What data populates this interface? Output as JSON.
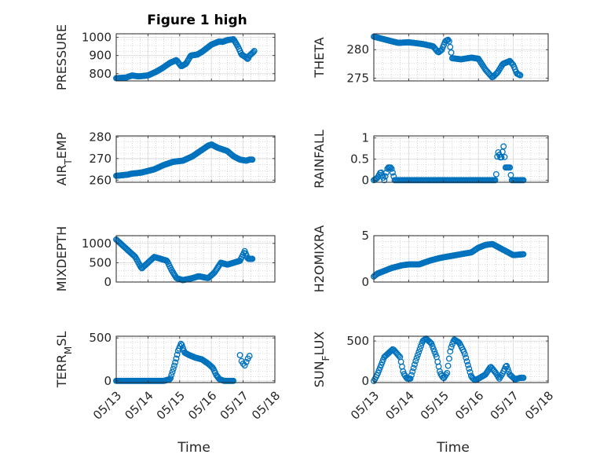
{
  "figure": {
    "title": "Figure 1 high",
    "marker_color": "#0072bd",
    "axis_color": "#262626",
    "grid_color": "#b8b8b8",
    "xtick_labels": [
      "05/13",
      "05/14",
      "05/15",
      "05/16",
      "05/17",
      "05/18"
    ],
    "xlabel": "Time"
  },
  "chart_data": [
    {
      "type": "scatter",
      "title": "Figure 1 high",
      "ylabel": "PRESSURE",
      "xlim": [
        0,
        5
      ],
      "ylim": [
        760,
        1020
      ],
      "yticks": [
        800,
        900,
        1000
      ],
      "ytick_labels": [
        "800",
        "900",
        "1000"
      ],
      "xlabel": "",
      "xtick_labels": [],
      "grid": true,
      "keypoints": [
        [
          0.0,
          775
        ],
        [
          0.3,
          778
        ],
        [
          0.5,
          790
        ],
        [
          0.7,
          785
        ],
        [
          1.0,
          790
        ],
        [
          1.25,
          810
        ],
        [
          1.45,
          830
        ],
        [
          1.7,
          860
        ],
        [
          1.9,
          875
        ],
        [
          2.05,
          840
        ],
        [
          2.2,
          855
        ],
        [
          2.35,
          900
        ],
        [
          2.55,
          905
        ],
        [
          2.7,
          920
        ],
        [
          3.0,
          960
        ],
        [
          3.25,
          978
        ],
        [
          3.35,
          975
        ],
        [
          3.5,
          985
        ],
        [
          3.7,
          990
        ],
        [
          3.85,
          945
        ],
        [
          3.95,
          905
        ],
        [
          4.05,
          895
        ],
        [
          4.15,
          880
        ],
        [
          4.2,
          900
        ],
        [
          4.3,
          915
        ],
        [
          4.35,
          925
        ]
      ]
    },
    {
      "type": "scatter",
      "ylabel": "THETA",
      "xlim": [
        0,
        5
      ],
      "ylim": [
        274.5,
        282.8
      ],
      "yticks": [
        275,
        280
      ],
      "ytick_labels": [
        "275",
        "280"
      ],
      "xlabel": "",
      "xtick_labels": [],
      "grid": true,
      "keypoints": [
        [
          0.0,
          282.3
        ],
        [
          0.25,
          281.9
        ],
        [
          0.5,
          281.5
        ],
        [
          0.7,
          281.2
        ],
        [
          1.0,
          281.3
        ],
        [
          1.4,
          281.0
        ],
        [
          1.7,
          280.6
        ],
        [
          1.85,
          279.5
        ],
        [
          1.95,
          280.0
        ],
        [
          2.05,
          281.5
        ],
        [
          2.15,
          281.8
        ],
        [
          2.25,
          278.5
        ],
        [
          2.5,
          278.3
        ],
        [
          2.8,
          278.6
        ],
        [
          3.0,
          278.4
        ],
        [
          3.2,
          276.5
        ],
        [
          3.4,
          275.1
        ],
        [
          3.55,
          276.0
        ],
        [
          3.7,
          277.5
        ],
        [
          3.9,
          278.0
        ],
        [
          4.0,
          277.3
        ],
        [
          4.1,
          275.8
        ],
        [
          4.2,
          275.5
        ]
      ]
    },
    {
      "type": "scatter",
      "ylabel": "AIR_TEMP",
      "xlim": [
        0,
        5
      ],
      "ylim": [
        259,
        280.5
      ],
      "yticks": [
        260,
        270,
        280
      ],
      "ytick_labels": [
        "260",
        "270",
        "280"
      ],
      "xlabel": "",
      "xtick_labels": [],
      "grid": true,
      "keypoints": [
        [
          0.0,
          262
        ],
        [
          0.35,
          262.5
        ],
        [
          0.5,
          263
        ],
        [
          0.8,
          263.5
        ],
        [
          1.2,
          265
        ],
        [
          1.5,
          267
        ],
        [
          1.8,
          268.5
        ],
        [
          2.1,
          269
        ],
        [
          2.4,
          271
        ],
        [
          2.7,
          274
        ],
        [
          2.9,
          276
        ],
        [
          3.0,
          276.5
        ],
        [
          3.2,
          275
        ],
        [
          3.5,
          273.5
        ],
        [
          3.7,
          271
        ],
        [
          3.9,
          269.5
        ],
        [
          4.1,
          269
        ],
        [
          4.2,
          269.5
        ],
        [
          4.3,
          269.5
        ]
      ]
    },
    {
      "type": "scatter",
      "ylabel": "RAINFALL",
      "xlim": [
        0,
        5
      ],
      "ylim": [
        -0.05,
        1.05
      ],
      "yticks": [
        0,
        0.5,
        1
      ],
      "ytick_labels": [
        "0",
        "0.5",
        "1"
      ],
      "xlabel": "",
      "xtick_labels": [],
      "grid": true,
      "keypoints": [
        [
          0.0,
          0
        ],
        [
          0.1,
          0.05
        ],
        [
          0.2,
          0.2
        ],
        [
          0.3,
          0
        ],
        [
          0.4,
          0.3
        ],
        [
          0.5,
          0.3
        ],
        [
          0.6,
          0
        ],
        [
          3.2,
          0
        ],
        [
          3.5,
          0
        ],
        [
          3.55,
          0.7
        ],
        [
          3.65,
          0.5
        ],
        [
          3.72,
          0.8
        ],
        [
          3.78,
          0.3
        ],
        [
          3.9,
          0.3
        ],
        [
          3.95,
          0
        ],
        [
          4.3,
          0
        ]
      ]
    },
    {
      "type": "scatter",
      "ylabel": "MIXDEPTH",
      "xlim": [
        0,
        5
      ],
      "ylim": [
        0,
        1200
      ],
      "yticks": [
        0,
        500,
        1000
      ],
      "ytick_labels": [
        "0",
        "500",
        "1000"
      ],
      "xlabel": "",
      "xtick_labels": [],
      "grid": true,
      "keypoints": [
        [
          0.0,
          1100
        ],
        [
          0.2,
          950
        ],
        [
          0.4,
          800
        ],
        [
          0.6,
          650
        ],
        [
          0.8,
          350
        ],
        [
          1.0,
          500
        ],
        [
          1.2,
          650
        ],
        [
          1.4,
          600
        ],
        [
          1.6,
          550
        ],
        [
          1.75,
          300
        ],
        [
          1.9,
          100
        ],
        [
          2.1,
          50
        ],
        [
          2.4,
          100
        ],
        [
          2.6,
          150
        ],
        [
          2.9,
          100
        ],
        [
          3.1,
          250
        ],
        [
          3.3,
          500
        ],
        [
          3.5,
          450
        ],
        [
          3.7,
          500
        ],
        [
          3.9,
          550
        ],
        [
          4.05,
          800
        ],
        [
          4.15,
          600
        ],
        [
          4.3,
          600
        ]
      ]
    },
    {
      "type": "scatter",
      "ylabel": "H2OMIXRA",
      "xlim": [
        0,
        5
      ],
      "ylim": [
        0,
        5
      ],
      "yticks": [
        0,
        5
      ],
      "ytick_labels": [
        "0",
        "5"
      ],
      "xlabel": "",
      "xtick_labels": [],
      "grid": true,
      "keypoints": [
        [
          0.0,
          0.6
        ],
        [
          0.1,
          0.9
        ],
        [
          0.3,
          1.2
        ],
        [
          0.5,
          1.5
        ],
        [
          0.8,
          1.8
        ],
        [
          1.0,
          1.9
        ],
        [
          1.3,
          1.9
        ],
        [
          1.6,
          2.3
        ],
        [
          1.9,
          2.6
        ],
        [
          2.2,
          2.8
        ],
        [
          2.5,
          3.0
        ],
        [
          2.8,
          3.2
        ],
        [
          3.0,
          3.7
        ],
        [
          3.2,
          4.0
        ],
        [
          3.4,
          4.1
        ],
        [
          3.6,
          3.7
        ],
        [
          3.8,
          3.3
        ],
        [
          4.0,
          2.9
        ],
        [
          4.3,
          3.0
        ]
      ]
    },
    {
      "type": "scatter",
      "ylabel": "TERR_MSL",
      "xlim": [
        0,
        5
      ],
      "ylim": [
        -20,
        520
      ],
      "yticks": [
        0,
        500
      ],
      "ytick_labels": [
        "0",
        "500"
      ],
      "xlabel": "Time",
      "xtick_labels": [
        "05/13",
        "05/14",
        "05/15",
        "05/16",
        "05/17",
        "05/18"
      ],
      "grid": true,
      "keypoints": [
        [
          0.0,
          0
        ],
        [
          0.5,
          0
        ],
        [
          1.0,
          0
        ],
        [
          1.5,
          0
        ],
        [
          1.7,
          20
        ],
        [
          1.85,
          200
        ],
        [
          1.95,
          350
        ],
        [
          2.05,
          440
        ],
        [
          2.15,
          330
        ],
        [
          2.3,
          300
        ],
        [
          2.5,
          270
        ],
        [
          2.7,
          250
        ],
        [
          2.9,
          200
        ],
        [
          3.05,
          150
        ],
        [
          3.15,
          70
        ],
        [
          3.25,
          20
        ],
        [
          3.4,
          0
        ],
        [
          3.7,
          0
        ]
      ],
      "extra_points": [
        [
          3.9,
          300
        ],
        [
          3.95,
          230
        ],
        [
          4.0,
          200
        ],
        [
          4.05,
          180
        ],
        [
          4.1,
          220
        ],
        [
          4.15,
          260
        ],
        [
          4.2,
          290
        ]
      ]
    },
    {
      "type": "scatter",
      "ylabel": "SUN_FLUX",
      "xlim": [
        0,
        5
      ],
      "ylim": [
        -20,
        560
      ],
      "yticks": [
        0,
        500
      ],
      "ytick_labels": [
        "0",
        "500"
      ],
      "xlabel": "Time",
      "xtick_labels": [
        "05/13",
        "05/14",
        "05/15",
        "05/16",
        "05/17",
        "05/18"
      ],
      "grid": true,
      "keypoints": [
        [
          0.0,
          0
        ],
        [
          0.1,
          80
        ],
        [
          0.3,
          300
        ],
        [
          0.55,
          400
        ],
        [
          0.75,
          300
        ],
        [
          0.85,
          100
        ],
        [
          0.95,
          30
        ],
        [
          1.05,
          30
        ],
        [
          1.2,
          250
        ],
        [
          1.4,
          500
        ],
        [
          1.5,
          530
        ],
        [
          1.65,
          470
        ],
        [
          1.8,
          300
        ],
        [
          1.9,
          100
        ],
        [
          2.0,
          30
        ],
        [
          2.1,
          100
        ],
        [
          2.2,
          400
        ],
        [
          2.3,
          520
        ],
        [
          2.45,
          480
        ],
        [
          2.6,
          350
        ],
        [
          2.7,
          200
        ],
        [
          2.8,
          50
        ],
        [
          2.9,
          10
        ],
        [
          3.0,
          30
        ],
        [
          3.2,
          80
        ],
        [
          3.35,
          180
        ],
        [
          3.5,
          100
        ],
        [
          3.6,
          30
        ],
        [
          3.7,
          100
        ],
        [
          3.8,
          200
        ],
        [
          3.9,
          80
        ],
        [
          4.05,
          20
        ],
        [
          4.2,
          40
        ],
        [
          4.3,
          40
        ]
      ]
    }
  ]
}
